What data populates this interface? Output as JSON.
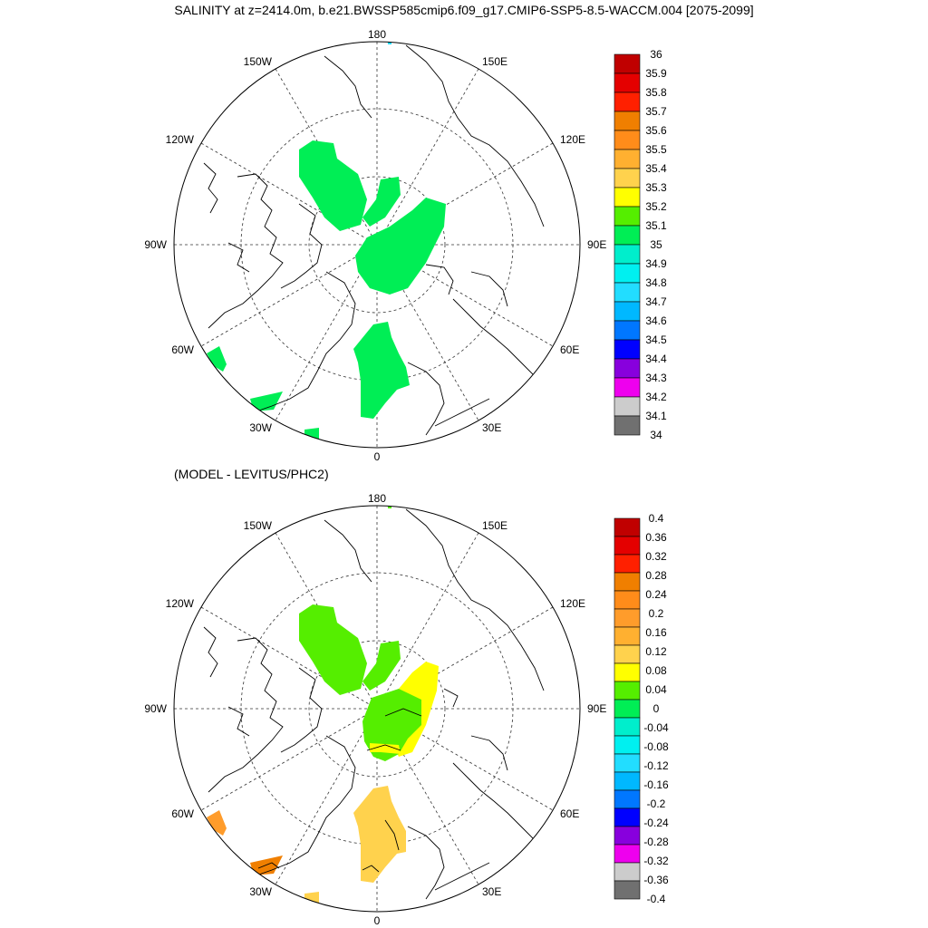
{
  "title": "SALINITY at z=2414.0m, b.e21.BWSSP585cmip6.f09_g17.CMIP6-SSP5-8.5-WACCM.004 [2075-2099]",
  "subtitle": "(MODEL - LEVITUS/PHC2)",
  "map_labels": {
    "lon180": "180",
    "lon150W": "150W",
    "lon150E": "150E",
    "lon120W": "120W",
    "lon120E": "120E",
    "lon90W": "90W",
    "lon90E": "90E",
    "lon60W": "60W",
    "lon60E": "60E",
    "lon30W": "30W",
    "lon30E": "30E",
    "lon0": "0"
  },
  "colorbar_top": {
    "labels": [
      "36",
      "35.9",
      "35.8",
      "35.7",
      "35.6",
      "35.5",
      "35.4",
      "35.3",
      "35.2",
      "35.1",
      "35",
      "34.9",
      "34.8",
      "34.7",
      "34.6",
      "34.5",
      "34.4",
      "34.3",
      "34.2",
      "34.1",
      "34"
    ],
    "colors": [
      "#c00000",
      "#e40000",
      "#ff2000",
      "#f07f00",
      "#ff8c1a",
      "#ffb030",
      "#ffd24d",
      "#ffff00",
      "#55ee00",
      "#00ee55",
      "#00eecc",
      "#00f0f0",
      "#22ddff",
      "#00b8ff",
      "#0077ff",
      "#0000ff",
      "#8800dd",
      "#ee00ee",
      "#cccccc",
      "#707070"
    ]
  },
  "colorbar_bottom": {
    "labels": [
      "0.4",
      "0.36",
      "0.32",
      "0.28",
      "0.24",
      "0.2",
      "0.16",
      "0.12",
      "0.08",
      "0.04",
      "0",
      "-0.04",
      "-0.08",
      "-0.12",
      "-0.16",
      "-0.2",
      "-0.24",
      "-0.28",
      "-0.32",
      "-0.36",
      "-0.4"
    ],
    "colors": [
      "#c00000",
      "#e40000",
      "#ff2000",
      "#f07f00",
      "#ff8c1a",
      "#ff9c2b",
      "#ffb030",
      "#ffd24d",
      "#ffff00",
      "#55ee00",
      "#00ee55",
      "#00eecc",
      "#00f0f0",
      "#22ddff",
      "#00b8ff",
      "#0077ff",
      "#0000ff",
      "#8800dd",
      "#ee00ee",
      "#cccccc",
      "#707070"
    ]
  },
  "colors": {
    "land_outline": "#000000",
    "grid": "#333333"
  }
}
